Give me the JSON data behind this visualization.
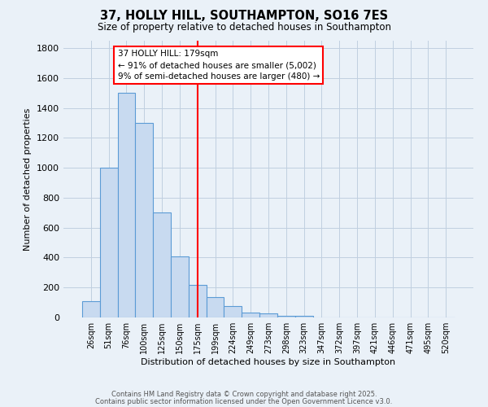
{
  "title": "37, HOLLY HILL, SOUTHAMPTON, SO16 7ES",
  "subtitle": "Size of property relative to detached houses in Southampton",
  "xlabel": "Distribution of detached houses by size in Southampton",
  "ylabel": "Number of detached properties",
  "bar_labels": [
    "26sqm",
    "51sqm",
    "76sqm",
    "100sqm",
    "125sqm",
    "150sqm",
    "175sqm",
    "199sqm",
    "224sqm",
    "249sqm",
    "273sqm",
    "298sqm",
    "323sqm",
    "347sqm",
    "372sqm",
    "397sqm",
    "421sqm",
    "446sqm",
    "471sqm",
    "495sqm",
    "520sqm"
  ],
  "bar_values": [
    110,
    1000,
    1500,
    1300,
    700,
    410,
    215,
    135,
    75,
    35,
    25,
    10,
    10,
    0,
    0,
    0,
    0,
    0,
    0,
    0,
    0
  ],
  "bar_color": "#c8daf0",
  "bar_edge_color": "#5b9bd5",
  "vline_x_idx": 6,
  "vline_color": "red",
  "annotation_title": "37 HOLLY HILL: 179sqm",
  "annotation_line1": "← 91% of detached houses are smaller (5,002)",
  "annotation_line2": "9% of semi-detached houses are larger (480) →",
  "annotation_box_color": "white",
  "annotation_box_edge": "red",
  "ylim": [
    0,
    1850
  ],
  "yticks": [
    0,
    200,
    400,
    600,
    800,
    1000,
    1200,
    1400,
    1600,
    1800
  ],
  "grid_color": "#c0cfe0",
  "bg_color": "#eaf1f8",
  "footer1": "Contains HM Land Registry data © Crown copyright and database right 2025.",
  "footer2": "Contains public sector information licensed under the Open Government Licence v3.0."
}
